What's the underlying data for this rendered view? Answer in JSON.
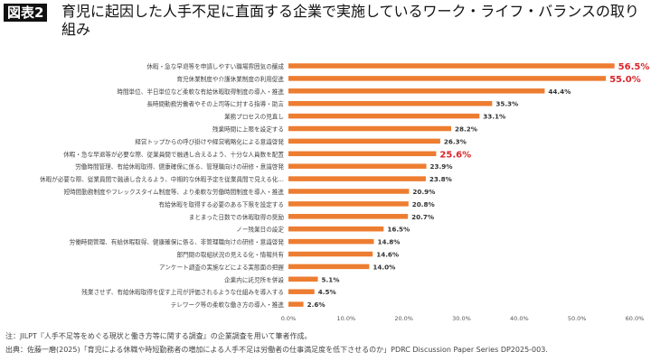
{
  "badge": "図表2",
  "title": "育児に起因した人手不足に直面する企業で実施しているワーク・ライフ・バランスの取り組み",
  "notes": {
    "note": "注：JILPT『人手不足等をめぐる現状と働き方等に関する調査』の企業調査を用いて筆者作成。",
    "source": "出典：佐藤一磨(2025)「育児による休職や時短勤務者の増加による人手不足は労働者の仕事満足度を低下させるのか」PDRC Discussion Paper Series DP2025-003."
  },
  "chart_data": {
    "type": "bar",
    "orientation": "horizontal",
    "categories": [
      "休暇・急な早退等を申請しやすい職場雰囲気の醸成",
      "育児休業制度や介護休業制度の利用促進",
      "時間単位、半日単位など柔軟な有給休暇取得制度の導入・推進",
      "長時間勤務労働者やその上司等に対する指導・助言",
      "業務プロセスの見直し",
      "残業時間に上限を設定する",
      "経営トップからの呼び掛けや経営戦略化による意識啓発",
      "休暇・急な早退等が必要な際、従業員間で融通し合えるよう、十分な人員数を配置",
      "労働時間管理、有給休暇取得、健康確保に係る、管理職向けの研修・意識啓発",
      "休暇が必要な際、従業員間で融通し合えるよう、中期的な休暇予定を従業員間で見える化…",
      "短時間勤務制度やフレックスタイム制度等、より柔軟な労働時間制度を導入・推進",
      "有給休暇を取得する必要のある下限を設定する",
      "まとまった日数での休暇取得の奨励",
      "ノー残業日の設定",
      "労働時間管理、有給休暇取得、健康確保に係る、非管理職向けの研修・意識啓発",
      "部門間の取組状況の見える化・情報共有",
      "アンケート調査の実施などによる実態面の把握",
      "企業内に託児所を併設",
      "残業させず、有給休暇取得を促す上司が評価されるような仕組みを導入する",
      "テレワーク等の柔軟な働き方の導入・推進"
    ],
    "values": [
      56.5,
      55.0,
      44.4,
      35.3,
      33.1,
      28.2,
      26.3,
      25.6,
      23.9,
      23.8,
      20.9,
      20.8,
      20.7,
      16.5,
      14.8,
      14.6,
      14.0,
      5.1,
      4.5,
      2.6
    ],
    "data_labels": [
      "56.5%",
      "55.0%",
      "44.4%",
      "35.3%",
      "33.1%",
      "28.2%",
      "26.3%",
      "25.6%",
      "23.9%",
      "23.8%",
      "20.9%",
      "20.8%",
      "20.7%",
      "16.5%",
      "14.8%",
      "14.6%",
      "14.0%",
      "5.1%",
      "4.5%",
      "2.6%"
    ],
    "highlighted": [
      0,
      1,
      7
    ],
    "xlim": [
      0,
      60
    ],
    "xticks": [
      "0.0%",
      "10.0%",
      "20.0%",
      "30.0%",
      "40.0%",
      "50.0%",
      "60.0%"
    ],
    "grid": false,
    "colors": {
      "bar": "#ED7D31",
      "highlight_label": "#D9262B",
      "label": "#333333"
    }
  }
}
